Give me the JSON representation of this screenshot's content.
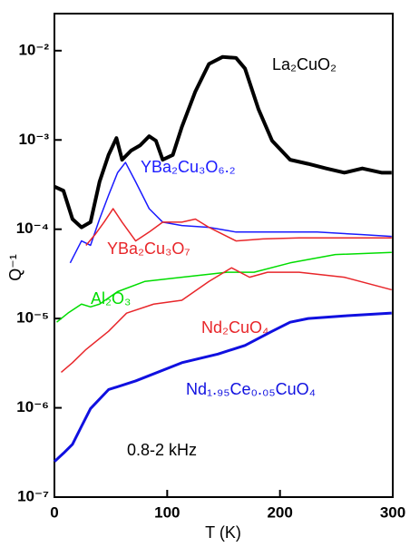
{
  "chart_data": {
    "type": "line",
    "xlabel": "T (K)",
    "ylabel": "Q⁻¹",
    "annotation": "0.8-2 kHz",
    "xlim": [
      0,
      300
    ],
    "xticks": [
      0,
      100,
      200,
      300
    ],
    "ylim": [
      1e-07,
      0.026
    ],
    "yscale": "log",
    "yticks": [
      {
        "value": 0.01,
        "label": "10⁻²"
      },
      {
        "value": 0.001,
        "label": "10⁻³"
      },
      {
        "value": 0.0001,
        "label": "10⁻⁴"
      },
      {
        "value": 1e-05,
        "label": "10⁻⁵"
      },
      {
        "value": 1e-06,
        "label": "10⁻⁶"
      },
      {
        "value": 1e-07,
        "label": "10⁻⁷"
      }
    ],
    "series": [
      {
        "name": "La₂CuO₂",
        "color": "#000000",
        "x": [
          0,
          8,
          16,
          24,
          32,
          40,
          48,
          55,
          60,
          68,
          76,
          84,
          90,
          96,
          105,
          113,
          125,
          137,
          149,
          161,
          169,
          181,
          193,
          209,
          225,
          241,
          257,
          273,
          290,
          299
        ],
        "values": [
          0.0003,
          0.00027,
          0.00013,
          0.000105,
          0.00012,
          0.00034,
          0.00068,
          0.00105,
          0.0006,
          0.00076,
          0.00087,
          0.0011,
          0.00098,
          0.0006,
          0.00068,
          0.0014,
          0.0035,
          0.0071,
          0.0085,
          0.0083,
          0.0063,
          0.0022,
          0.00098,
          0.0006,
          0.00054,
          0.00048,
          0.00043,
          0.00048,
          0.00043,
          0.00043
        ]
      },
      {
        "name": "YBa₂Cu₃O₆.₂",
        "color": "#1a1aff",
        "x": [
          14,
          24,
          32,
          40,
          48,
          56,
          63,
          72,
          84,
          96,
          113,
          137,
          161,
          193,
          233,
          273,
          299
        ],
        "values": [
          4.2e-05,
          7.4e-05,
          6.6e-05,
          0.00013,
          0.00024,
          0.00043,
          0.00056,
          0.00034,
          0.00017,
          0.00012,
          0.00011,
          0.000105,
          9.3e-05,
          9.3e-05,
          9.3e-05,
          8.7e-05,
          8.3e-05
        ]
      },
      {
        "name": "YBa₂Cu₃O₇",
        "color": "#e8262a",
        "x": [
          28,
          36,
          44,
          52,
          60,
          72,
          84,
          96,
          113,
          125,
          137,
          161,
          185,
          217,
          257,
          299
        ],
        "values": [
          6.6e-05,
          8.7e-05,
          0.00012,
          0.00017,
          0.00012,
          7.4e-05,
          9.3e-05,
          0.00012,
          0.00012,
          0.00013,
          0.000105,
          7.4e-05,
          7.8e-05,
          8e-05,
          8e-05,
          8e-05
        ]
      },
      {
        "name": "Al₂O₃",
        "color": "#00dd00",
        "x": [
          2,
          12,
          24,
          32,
          40,
          56,
          80,
          113,
          153,
          177,
          209,
          249,
          299
        ],
        "values": [
          9.1e-06,
          1.15e-05,
          1.45e-05,
          1.35e-05,
          1.45e-05,
          2e-05,
          2.6e-05,
          2.9e-05,
          3.3e-05,
          3.3e-05,
          4.2e-05,
          5.2e-05,
          5.5e-05
        ]
      },
      {
        "name": "Nd₂CuO₄",
        "color": "#e8262a",
        "x": [
          6,
          16,
          28,
          48,
          64,
          88,
          113,
          137,
          157,
          173,
          189,
          217,
          257,
          299
        ],
        "values": [
          2.5e-06,
          3.2e-06,
          4.5e-06,
          7.2e-06,
          1.15e-05,
          1.45e-05,
          1.6e-05,
          2.6e-05,
          3.7e-05,
          2.9e-05,
          3.3e-05,
          3.3e-05,
          2.9e-05,
          2.1e-05
        ]
      },
      {
        "name": "Nd₁.₉₅Ce₀.₀₅CuO₄",
        "color": "#1010e0",
        "x": [
          0,
          8,
          16,
          24,
          32,
          48,
          72,
          113,
          145,
          169,
          193,
          209,
          225,
          257,
          299
        ],
        "values": [
          2.5e-07,
          3.1e-07,
          3.9e-07,
          6.2e-07,
          9.8e-07,
          1.6e-06,
          2e-06,
          3.2e-06,
          4e-06,
          5e-06,
          7.2e-06,
          9.1e-06,
          1e-05,
          1.07e-05,
          1.15e-05
        ]
      }
    ]
  }
}
